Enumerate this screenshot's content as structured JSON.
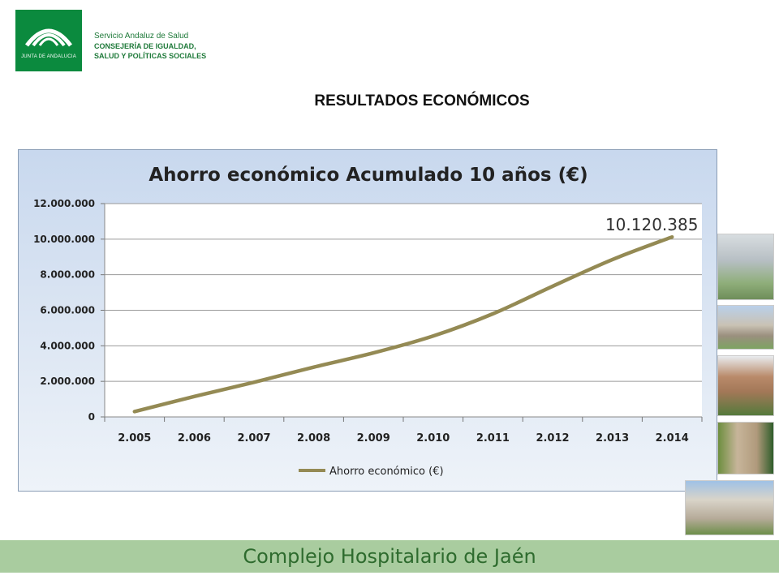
{
  "header": {
    "logo_caption": "JUNTA DE ANDALUCIA",
    "org_line1": "Servicio Andaluz de Salud",
    "org_line2": "CONSEJERÍA DE IGUALDAD,",
    "org_line3": "SALUD Y POLÍTICAS SOCIALES"
  },
  "page_title": "RESULTADOS ECONÓMICOS",
  "footer": {
    "text": "Complejo Hospitalario de Jaén"
  },
  "colors": {
    "series": "#948a54",
    "footer_bg": "#a9cc9f",
    "logo_green": "#0b8a3e"
  },
  "chart_data": {
    "type": "line",
    "title": "Ahorro económico Acumulado 10 años (€)",
    "categories": [
      "2.005",
      "2.006",
      "2.007",
      "2.008",
      "2.009",
      "2.010",
      "2.011",
      "2.012",
      "2.013",
      "2.014"
    ],
    "series": [
      {
        "name": "Ahorro económico (€)",
        "values": [
          300000,
          1150000,
          1950000,
          2800000,
          3600000,
          4550000,
          5800000,
          7350000,
          8850000,
          10120385
        ]
      }
    ],
    "y_ticks": [
      "0",
      "2.000.000",
      "4.000.000",
      "6.000.000",
      "8.000.000",
      "10.000.000",
      "12.000.000"
    ],
    "ylim": [
      0,
      12000000
    ],
    "annotation": {
      "text": "10.120.385",
      "category_index": 9
    },
    "grid": "horizontal",
    "legend_position": "bottom"
  }
}
